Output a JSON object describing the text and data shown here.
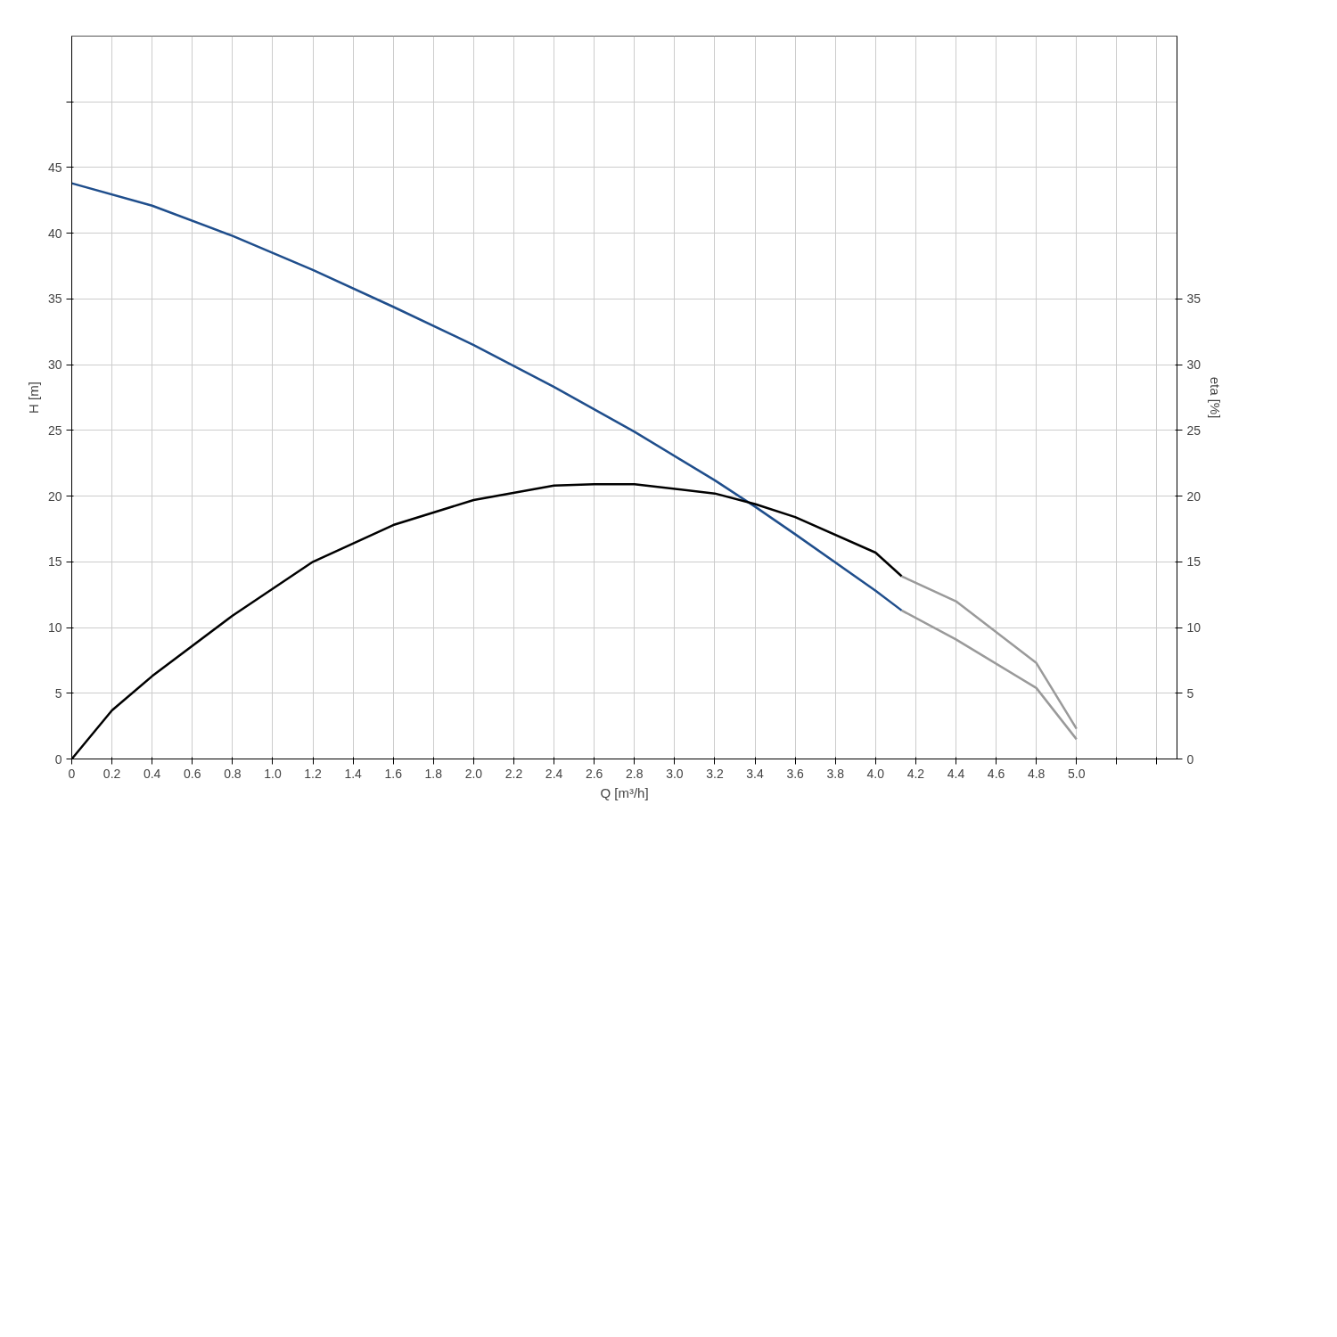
{
  "chart_data": {
    "type": "line",
    "xlabel": "Q [m³/h]",
    "ylabel": "H [m]",
    "y2label": "eta [%]",
    "xlim": [
      0,
      5.5
    ],
    "xticks": [
      0,
      0.2,
      0.4,
      0.6,
      0.8,
      {
        "value": 1,
        "label": "1.0"
      },
      1.2,
      1.4,
      1.6,
      1.8,
      {
        "value": 2,
        "label": "2.0"
      },
      2.2,
      2.4,
      2.6,
      2.8,
      {
        "value": 3,
        "label": "3.0"
      },
      3.2,
      3.4,
      3.6,
      3.8,
      {
        "value": 4,
        "label": "4.0"
      },
      4.2,
      4.4,
      4.6,
      4.8,
      {
        "value": 5,
        "label": "5.0"
      },
      {
        "value": 5.2,
        "label": null
      },
      {
        "value": 5.4,
        "label": null
      }
    ],
    "ylim": [
      0,
      55
    ],
    "yticks": [
      0,
      5,
      10,
      15,
      20,
      25,
      30,
      35,
      40,
      45,
      {
        "value": 50,
        "label": null
      }
    ],
    "y2lim": [
      0,
      55
    ],
    "y2ticks": [
      0,
      5,
      10,
      15,
      20,
      25,
      30,
      35
    ],
    "grid": true,
    "line_style": "solid",
    "series": [
      {
        "color": "#1f4e8c",
        "x": [
          0,
          0.4,
          0.8,
          1.2,
          1.6,
          2.0,
          2.4,
          2.8,
          3.2,
          3.4,
          3.6,
          4.0,
          4.13
        ],
        "values": [
          43.8,
          42.1,
          39.8,
          37.2,
          34.4,
          31.5,
          28.3,
          24.9,
          21.2,
          19.2,
          17.1,
          12.8,
          11.3
        ]
      },
      {
        "color": "#9a9a9a",
        "x": [
          4.13,
          4.4,
          4.8,
          5.0
        ],
        "values": [
          11.3,
          9.1,
          5.4,
          1.5
        ]
      },
      {
        "color": "#000000",
        "x": [
          0,
          0.2,
          0.4,
          0.8,
          1.2,
          1.6,
          2.0,
          2.4,
          2.6,
          2.8,
          3.2,
          3.4,
          3.6,
          4.0,
          4.13
        ],
        "values": [
          0,
          3.7,
          6.3,
          10.9,
          15.0,
          17.8,
          19.7,
          20.8,
          20.9,
          20.9,
          20.2,
          19.4,
          18.4,
          15.7,
          13.9
        ]
      },
      {
        "color": "#9a9a9a",
        "x": [
          4.13,
          4.4,
          4.8,
          5.0
        ],
        "values": [
          13.9,
          12.0,
          7.3,
          2.3
        ]
      }
    ]
  }
}
